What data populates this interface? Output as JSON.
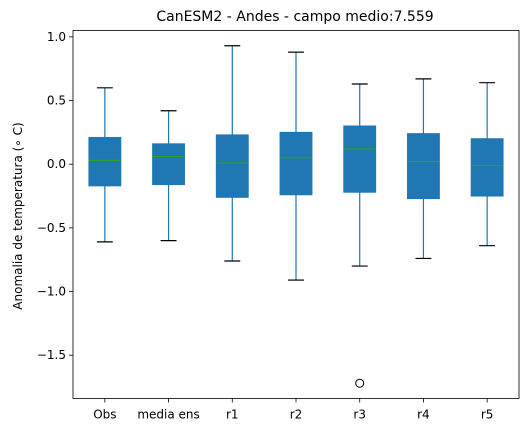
{
  "chart_data": {
    "type": "box",
    "title": "CanESM2 - Andes - campo medio:7.559",
    "xlabel": "",
    "ylabel": "Anomalia de temperatura (∘ C)",
    "ylim": [
      -1.84,
      1.05
    ],
    "yticks": [
      1.0,
      0.5,
      0.0,
      -0.5,
      -1.0,
      -1.5
    ],
    "ytick_labels": [
      "1.0",
      "0.5",
      "0.0",
      "−0.5",
      "−1.0",
      "−1.5"
    ],
    "grid": false,
    "legend": "none",
    "colors": {
      "box": "#1f77b4",
      "median": "#2ca02c",
      "whisker": "#1f77b4",
      "cap": "#000000",
      "outlier": "#000000"
    },
    "categories": [
      "Obs",
      "media ens",
      "r1",
      "r2",
      "r3",
      "r4",
      "r5"
    ],
    "boxes": [
      {
        "label": "Obs",
        "whislo": -0.61,
        "q1": -0.17,
        "med": 0.03,
        "q3": 0.21,
        "whishi": 0.6,
        "fliers": []
      },
      {
        "label": "media ens",
        "whislo": -0.6,
        "q1": -0.16,
        "med": 0.06,
        "q3": 0.16,
        "whishi": 0.42,
        "fliers": []
      },
      {
        "label": "r1",
        "whislo": -0.76,
        "q1": -0.26,
        "med": 0.01,
        "q3": 0.23,
        "whishi": 0.93,
        "fliers": []
      },
      {
        "label": "r2",
        "whislo": -0.91,
        "q1": -0.24,
        "med": 0.05,
        "q3": 0.25,
        "whishi": 0.88,
        "fliers": []
      },
      {
        "label": "r3",
        "whislo": -0.8,
        "q1": -0.22,
        "med": 0.12,
        "q3": 0.3,
        "whishi": 0.63,
        "fliers": [
          -1.72
        ]
      },
      {
        "label": "r4",
        "whislo": -0.74,
        "q1": -0.27,
        "med": 0.02,
        "q3": 0.24,
        "whishi": 0.67,
        "fliers": []
      },
      {
        "label": "r5",
        "whislo": -0.64,
        "q1": -0.25,
        "med": -0.01,
        "q3": 0.2,
        "whishi": 0.64,
        "fliers": []
      }
    ]
  }
}
